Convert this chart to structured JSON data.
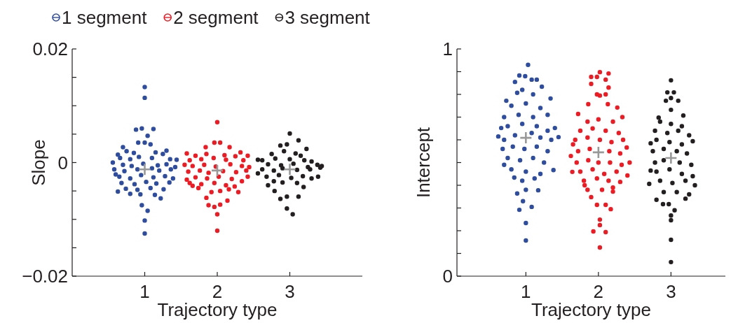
{
  "chart_data": [
    {
      "type": "scatter",
      "xlabel": "Trajectory type",
      "ylabel": "Slope",
      "xlim": [
        0,
        4
      ],
      "ylim": [
        -0.02,
        0.02
      ],
      "xticks": [
        1,
        2,
        3
      ],
      "yticks": [
        {
          "value": -0.02,
          "label": "−0.02"
        },
        {
          "value": -0.015,
          "label": null
        },
        {
          "value": -0.01,
          "label": null
        },
        {
          "value": -0.005,
          "label": null
        },
        0,
        {
          "value": 0.005,
          "label": null
        },
        {
          "value": 0.01,
          "label": null
        },
        {
          "value": 0.015,
          "label": null
        },
        0.02
      ],
      "legend": "top",
      "marker": "circle",
      "series": [
        {
          "name": "1 segment",
          "color": "#2e4d9e",
          "x": [
            1.0,
            1.0,
            0.88,
            0.96,
            1.12,
            1.04,
            0.91,
            1.0,
            1.08,
            0.7,
            1.3,
            0.63,
            1.44,
            0.56,
            1.42,
            0.6,
            1.39,
            0.63,
            1.22,
            0.94,
            0.96,
            1.04,
            1.0,
            1.0,
            0.75,
            0.85,
            1.15,
            1.25,
            0.66,
            0.8,
            0.92,
            1.1,
            1.35,
            0.7,
            0.82,
            0.98,
            1.18,
            1.3,
            0.58,
            0.72,
            0.9,
            1.1,
            1.2,
            1.36,
            0.65,
            0.8,
            0.95,
            1.12,
            1.28,
            0.68,
            0.86,
            1.02,
            1.16,
            1.34,
            0.74,
            0.9,
            1.08,
            1.26,
            0.8,
            1.14
          ],
          "values": [
            0.0133,
            0.0114,
            0.0058,
            0.006,
            0.0059,
            0.0047,
            0.0035,
            0.0035,
            0.0032,
            0.0027,
            0.0021,
            0.0014,
            0.0005,
            0.0,
            -0.0008,
            -0.0021,
            -0.0028,
            -0.0051,
            -0.0063,
            -0.0056,
            -0.0075,
            -0.0085,
            -0.0102,
            -0.0125,
            0.002,
            0.0017,
            0.0018,
            0.0015,
            0.0008,
            0.0006,
            0.001,
            0.0008,
            0.0006,
            -0.0004,
            -0.0006,
            -0.0002,
            -0.0005,
            -0.0003,
            -0.0012,
            -0.0015,
            -0.0012,
            -0.001,
            -0.0014,
            -0.0012,
            -0.0025,
            -0.0028,
            -0.0022,
            -0.0026,
            -0.0024,
            -0.0036,
            -0.0038,
            -0.0034,
            -0.0037,
            -0.0035,
            -0.0046,
            -0.0048,
            -0.0045,
            -0.0047,
            -0.0055,
            -0.0057
          ]
        },
        {
          "name": "2 segment",
          "color": "#ed1c24",
          "x": [
            2.0,
            1.96,
            2.04,
            1.84,
            2.17,
            1.58,
            2.32,
            2.42,
            1.55,
            2.44,
            2.42,
            1.58,
            1.66,
            2.29,
            1.92,
            2.04,
            1.85,
            2.14,
            1.88,
            1.96,
            2.04,
            2.0,
            2.0,
            1.7,
            1.85,
            2.1,
            2.25,
            1.62,
            1.78,
            1.95,
            2.12,
            2.36,
            1.66,
            1.82,
            1.98,
            2.18,
            2.34,
            1.6,
            1.76,
            1.88,
            2.08,
            2.26,
            2.4,
            1.7,
            1.86,
            2.02,
            2.2,
            2.34,
            1.62,
            1.78,
            1.96,
            2.12,
            2.24,
            1.74,
            2.16
          ],
          "values": [
            0.0071,
            0.0035,
            0.0035,
            0.0027,
            0.0027,
            0.0016,
            0.0018,
            0.0012,
            -0.0004,
            -0.0008,
            -0.0025,
            -0.003,
            -0.0041,
            -0.0052,
            -0.0052,
            -0.005,
            -0.0062,
            -0.0067,
            -0.0075,
            -0.0078,
            -0.0074,
            -0.0091,
            -0.012,
            0.0012,
            0.0015,
            0.0013,
            0.0011,
            0.0004,
            0.0006,
            0.0008,
            0.0005,
            0.0004,
            -0.0006,
            -0.0004,
            -0.0007,
            -0.0003,
            -0.0006,
            -0.0016,
            -0.0014,
            -0.0018,
            -0.0015,
            -0.0017,
            -0.0014,
            -0.0026,
            -0.0028,
            -0.0025,
            -0.0029,
            -0.0033,
            -0.0036,
            -0.0038,
            -0.0036,
            -0.004,
            -0.0042,
            -0.0045,
            -0.0047
          ]
        },
        {
          "name": "3 segment",
          "color": "#231f20",
          "x": [
            3.0,
            3.12,
            2.87,
            2.96,
            3.23,
            2.56,
            3.44,
            2.56,
            3.39,
            2.7,
            2.79,
            3.19,
            2.87,
            2.96,
            3.12,
            2.96,
            3.04,
            2.75,
            2.92,
            3.08,
            3.15,
            2.62,
            2.8,
            3.0,
            3.2,
            3.3,
            2.7,
            2.88,
            3.05,
            3.25,
            3.38,
            2.62,
            2.78,
            2.9,
            3.1,
            3.28,
            3.42,
            2.68,
            2.85,
            3.02,
            3.18,
            3.3,
            2.9,
            3.1,
            2.78
          ],
          "values": [
            0.0051,
            0.0039,
            0.003,
            0.0032,
            0.0024,
            0.0005,
            -0.0006,
            -0.0019,
            -0.0025,
            -0.004,
            -0.005,
            -0.0043,
            -0.0064,
            -0.006,
            -0.006,
            -0.0081,
            -0.0091,
            0.0015,
            0.002,
            0.0016,
            0.0012,
            0.0004,
            0.0007,
            0.0006,
            0.0004,
            0.0002,
            -0.0003,
            -0.0005,
            -0.0002,
            -0.0008,
            -0.0004,
            -0.0012,
            -0.0014,
            -0.001,
            -0.0013,
            -0.0012,
            -0.0009,
            -0.0025,
            -0.0022,
            -0.0027,
            -0.0024,
            -0.0028,
            -0.0035,
            -0.0036,
            -0.0033
          ]
        },
        {
          "color": "#999999",
          "marker": "cross",
          "x": [
            1,
            2,
            3
          ],
          "values": [
            -0.0012,
            -0.0014,
            -0.0012
          ]
        }
      ]
    },
    {
      "type": "scatter",
      "xlabel": "Trajectory type",
      "ylabel": "Intercept",
      "xlim": [
        0.05,
        3.75
      ],
      "ylim": [
        0,
        1
      ],
      "xticks": [
        1,
        2,
        3
      ],
      "yticks": [
        0,
        {
          "value": 0.1,
          "label": null
        },
        {
          "value": 0.2,
          "label": null
        },
        {
          "value": 0.3,
          "label": null
        },
        {
          "value": 0.4,
          "label": null
        },
        {
          "value": 0.5,
          "label": null
        },
        {
          "value": 0.6,
          "label": null
        },
        {
          "value": 0.7,
          "label": null
        },
        {
          "value": 0.8,
          "label": null
        },
        {
          "value": 0.9,
          "label": null
        },
        1
      ],
      "marker": "circle",
      "series": [
        {
          "color": "#2e4d9e",
          "x": [
            1.03,
            0.91,
            0.99,
            0.85,
            1.08,
            1.15,
            1.22,
            0.88,
            0.73,
            1.34,
            0.62,
            1.45,
            0.66,
            1.4,
            0.7,
            1.38,
            0.84,
            0.88,
            1.17,
            0.91,
            1.08,
            1.0,
            1.0,
            0.95,
            1.1,
            0.8,
            1.0,
            1.2,
            0.7,
            0.9,
            1.1,
            1.3,
            0.75,
            0.95,
            1.15,
            1.3,
            0.7,
            0.85,
            1.08,
            1.2,
            1.35,
            0.68,
            0.82,
            0.98,
            1.15,
            1.3,
            0.75,
            0.92,
            1.1,
            1.25,
            0.8,
            1.0,
            1.2,
            0.95,
            1.12,
            1.0,
            0.96
          ],
          "values": [
            0.93,
            0.883,
            0.88,
            0.855,
            0.865,
            0.865,
            0.834,
            0.807,
            0.772,
            0.782,
            0.615,
            0.612,
            0.652,
            0.652,
            0.49,
            0.467,
            0.434,
            0.364,
            0.378,
            0.292,
            0.305,
            0.234,
            0.157,
            0.82,
            0.8,
            0.75,
            0.76,
            0.74,
            0.7,
            0.71,
            0.7,
            0.71,
            0.66,
            0.67,
            0.66,
            0.64,
            0.6,
            0.62,
            0.63,
            0.61,
            0.6,
            0.56,
            0.57,
            0.56,
            0.57,
            0.55,
            0.52,
            0.51,
            0.52,
            0.5,
            0.47,
            0.46,
            0.45,
            0.42,
            0.43,
            0.38,
            0.33
          ]
        },
        {
          "color": "#ed1c24",
          "x": [
            2.02,
            2.14,
            1.9,
            1.98,
            2.1,
            1.9,
            2.14,
            1.98,
            2.1,
            2.02,
            1.86,
            2.13,
            2.26,
            1.72,
            2.33,
            1.62,
            2.43,
            1.65,
            2.39,
            1.64,
            2.4,
            1.81,
            2.3,
            1.9,
            2.2,
            1.98,
            2.1,
            2.17,
            2.02,
            2.02,
            1.93,
            2.1,
            2.02,
            1.85,
            2.0,
            2.2,
            1.75,
            1.92,
            2.1,
            2.28,
            1.68,
            1.85,
            2.02,
            2.18,
            2.34,
            1.72,
            1.88,
            2.15,
            2.3,
            1.7,
            1.86,
            2.0,
            2.16,
            2.32,
            1.75,
            1.92,
            2.08,
            2.25,
            1.8,
            1.98,
            2.14,
            1.85,
            2.05,
            2.2
          ],
          "values": [
            0.898,
            0.892,
            0.877,
            0.877,
            0.865,
            0.846,
            0.83,
            0.8,
            0.8,
            0.795,
            0.757,
            0.757,
            0.742,
            0.714,
            0.7,
            0.529,
            0.5,
            0.58,
            0.566,
            0.459,
            0.443,
            0.4,
            0.415,
            0.348,
            0.372,
            0.314,
            0.314,
            0.295,
            0.249,
            0.225,
            0.197,
            0.194,
            0.126,
            0.68,
            0.69,
            0.68,
            0.64,
            0.65,
            0.64,
            0.63,
            0.6,
            0.61,
            0.6,
            0.59,
            0.6,
            0.55,
            0.56,
            0.55,
            0.54,
            0.5,
            0.51,
            0.5,
            0.5,
            0.49,
            0.46,
            0.47,
            0.45,
            0.46,
            0.42,
            0.43,
            0.42,
            0.38,
            0.38,
            0.39
          ]
        },
        {
          "color": "#231f20",
          "x": [
            3.0,
            2.95,
            3.04,
            3.0,
            2.93,
            3.1,
            3.0,
            2.83,
            3.17,
            2.72,
            3.3,
            2.72,
            3.3,
            2.7,
            3.33,
            2.8,
            3.2,
            2.89,
            2.97,
            3.05,
            3.0,
            3.0,
            3.0,
            3.0,
            2.85,
            3.0,
            3.15,
            2.78,
            2.95,
            3.1,
            3.25,
            2.8,
            2.98,
            3.15,
            2.75,
            2.9,
            3.08,
            3.22,
            2.78,
            2.9,
            3.12,
            3.28,
            2.8,
            2.98,
            3.15,
            2.85,
            3.02,
            3.2,
            2.9,
            3.08,
            3.25
          ],
          "values": [
            0.862,
            0.809,
            0.809,
            0.784,
            0.772,
            0.772,
            0.732,
            0.698,
            0.707,
            0.585,
            0.594,
            0.465,
            0.44,
            0.406,
            0.4,
            0.336,
            0.341,
            0.317,
            0.317,
            0.29,
            0.267,
            0.246,
            0.16,
            0.062,
            0.68,
            0.67,
            0.66,
            0.64,
            0.63,
            0.64,
            0.62,
            0.6,
            0.59,
            0.58,
            0.55,
            0.56,
            0.55,
            0.54,
            0.5,
            0.51,
            0.5,
            0.49,
            0.46,
            0.47,
            0.45,
            0.42,
            0.41,
            0.42,
            0.37,
            0.37,
            0.36
          ]
        },
        {
          "color": "#999999",
          "marker": "cross",
          "x": [
            1,
            2,
            3
          ],
          "values": [
            0.609,
            0.545,
            0.52
          ]
        }
      ]
    }
  ]
}
